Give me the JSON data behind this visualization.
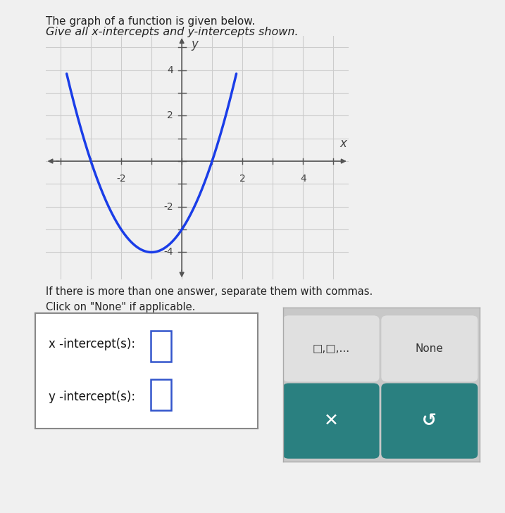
{
  "title_line1": "The graph of a function is given below.",
  "title_line2": "Give all x-intercepts and y-intercepts shown.",
  "curve_color": "#1a3de8",
  "curve_linewidth": 2.5,
  "background_color": "#f0f0f0",
  "plot_bg_color": "#e8e8e8",
  "grid_color": "#cccccc",
  "axis_color": "#555555",
  "xlim": [
    -4.5,
    5.5
  ],
  "ylim": [
    -5.2,
    5.5
  ],
  "xticks": [
    -4,
    -3,
    -2,
    -1,
    0,
    1,
    2,
    3,
    4,
    5
  ],
  "yticks": [
    -4,
    -3,
    -2,
    -1,
    0,
    1,
    2,
    3,
    4,
    5
  ],
  "xtick_labels_show": [
    -2,
    2,
    4
  ],
  "ytick_labels_show": [
    -4,
    -2,
    2,
    4
  ],
  "func_a": 1,
  "func_b": 2,
  "func_c": -3,
  "x_range_start": -3.8,
  "x_range_end": 1.8,
  "label_text1": "If there is more than one answer, separate them with commas.",
  "label_text2": "Click on \"None\" if applicable.",
  "intercept_box_label_x": "x -intercept(s):",
  "intercept_box_label_y": "y -intercept(s):",
  "box_color": "#ffffff",
  "button_bg": "#2a8080",
  "none_bg": "#d8d8d8",
  "panel_bg": "#c8c8c8"
}
